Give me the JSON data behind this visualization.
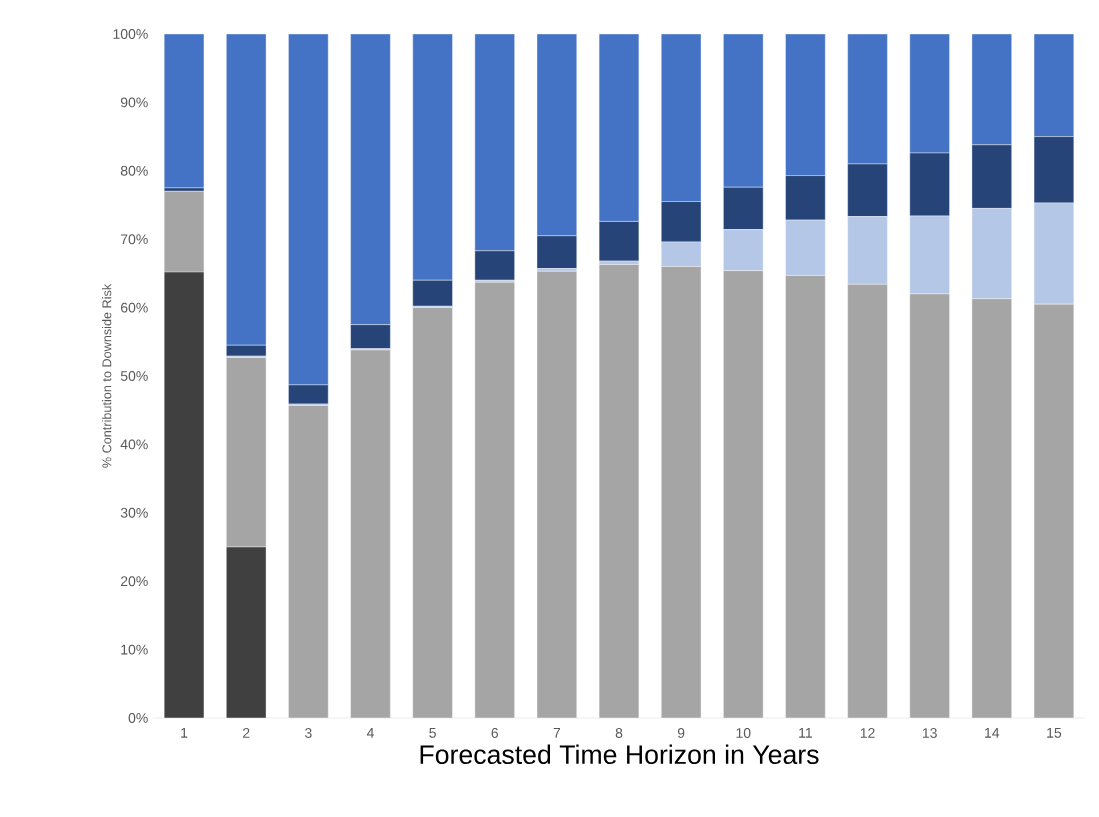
{
  "chart_data": {
    "type": "bar",
    "stacked": true,
    "ylabel": "% Contribution to Downside Risk",
    "xlabel": "Forecasted Time Horizon in Years",
    "categories": [
      "1",
      "2",
      "3",
      "4",
      "5",
      "6",
      "7",
      "8",
      "9",
      "10",
      "11",
      "12",
      "13",
      "14",
      "15"
    ],
    "ylim": [
      0,
      100
    ],
    "yticks": [
      {
        "value": 0,
        "label": "0%"
      },
      {
        "value": 10,
        "label": "10%"
      },
      {
        "value": 20,
        "label": "20%"
      },
      {
        "value": 30,
        "label": "30%"
      },
      {
        "value": 40,
        "label": "40%"
      },
      {
        "value": 50,
        "label": "50%"
      },
      {
        "value": 60,
        "label": "60%"
      },
      {
        "value": 70,
        "label": "70%"
      },
      {
        "value": 80,
        "label": "80%"
      },
      {
        "value": 90,
        "label": "90%"
      },
      {
        "value": 100,
        "label": "100%"
      }
    ],
    "series": [
      {
        "color": "#404040",
        "values": [
          65.2,
          25,
          0,
          0,
          0,
          0,
          0,
          0,
          0,
          0,
          0,
          0,
          0,
          0,
          0
        ]
      },
      {
        "color": "#a5a5a5",
        "values": [
          11.8,
          27.7,
          45.7,
          53.8,
          60,
          63.7,
          65.3,
          66.3,
          66,
          65.4,
          64.7,
          63.4,
          62,
          61.3,
          60.5
        ]
      },
      {
        "color": "#b4c7e7",
        "values": [
          0,
          0.2,
          0.2,
          0.2,
          0.2,
          0.3,
          0.4,
          0.5,
          3.6,
          6.0,
          8.1,
          9.9,
          11.4,
          13.2,
          14.8
        ]
      },
      {
        "color": "#264478",
        "values": [
          0.5,
          1.6,
          2.8,
          3.5,
          3.8,
          4.3,
          4.8,
          5.8,
          5.9,
          6.2,
          6.5,
          7.7,
          9.2,
          9.3,
          9.7
        ]
      },
      {
        "color": "#4472c4",
        "values": [
          22.5,
          45.5,
          51.3,
          42.5,
          36,
          31.7,
          29.5,
          27.4,
          24.5,
          22.4,
          20.7,
          19,
          17.4,
          16.2,
          15
        ]
      }
    ]
  }
}
